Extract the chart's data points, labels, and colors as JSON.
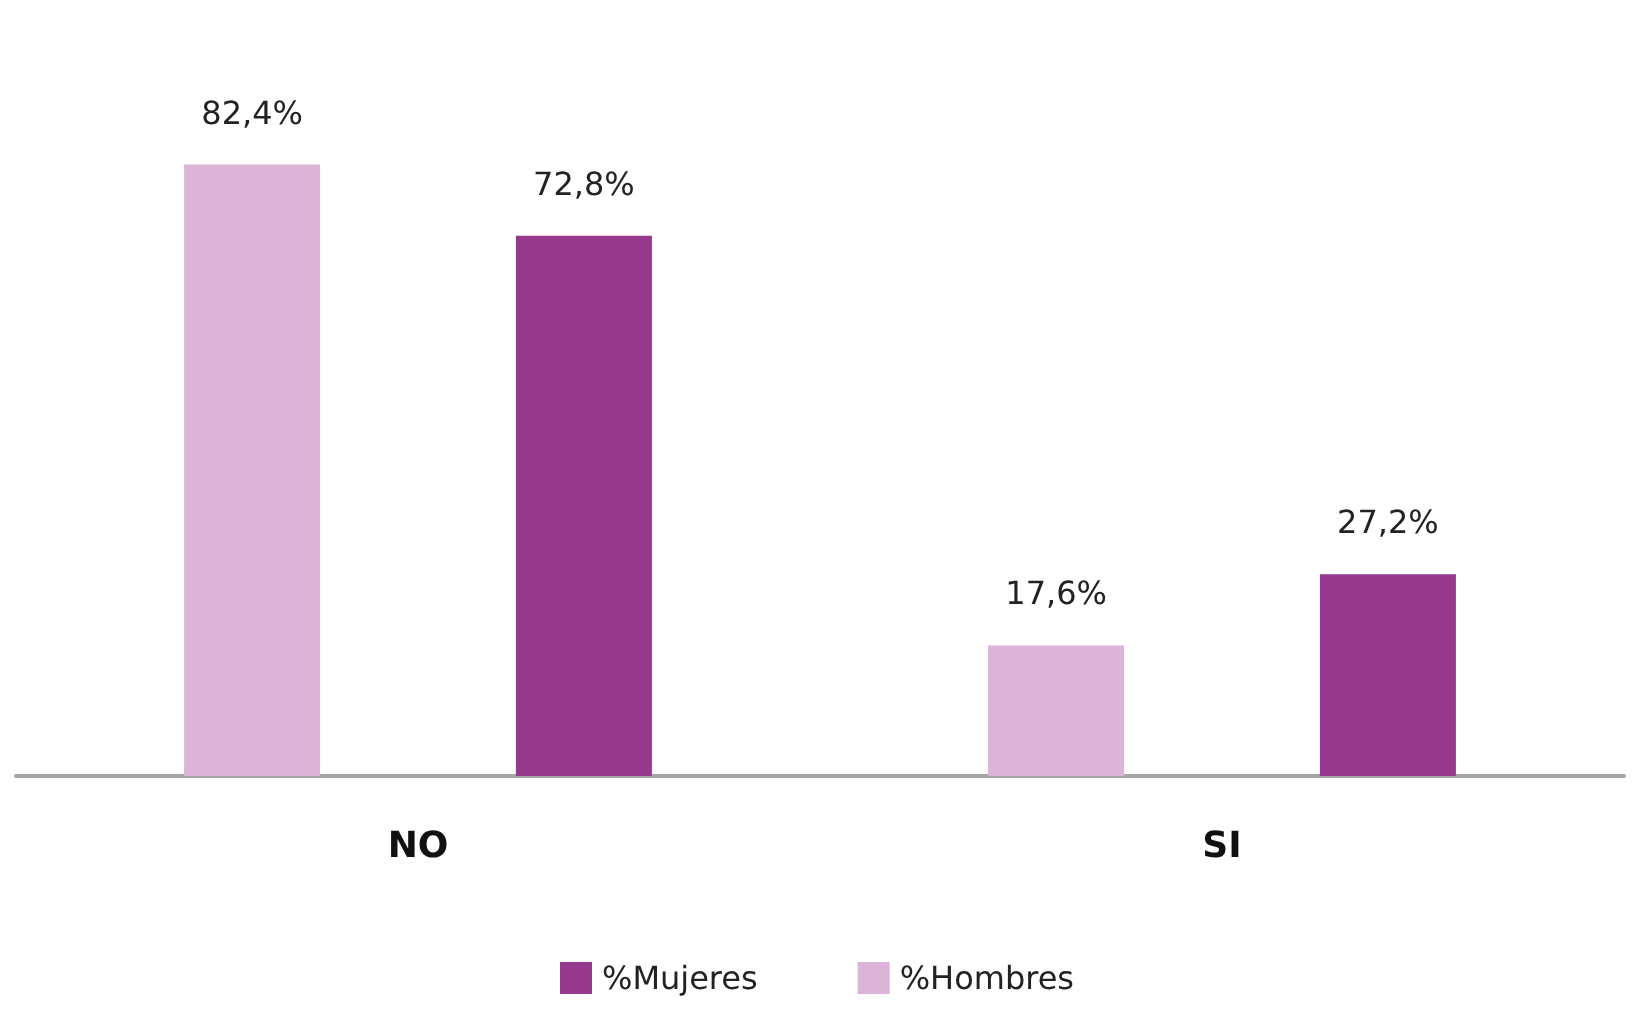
{
  "chart_data": {
    "type": "bar",
    "categories": [
      "NO",
      "SI"
    ],
    "series": [
      {
        "name": "%Hombres",
        "color": "#dcb4d8",
        "values": [
          82.4,
          17.6
        ],
        "value_labels": [
          "82,4%",
          "17,6%"
        ]
      },
      {
        "name": "%Mujeres",
        "color": "#96398c",
        "values": [
          72.8,
          27.2
        ],
        "value_labels": [
          "72,8%",
          "27,2%"
        ]
      }
    ],
    "legend": "bottom",
    "grid": false
  }
}
